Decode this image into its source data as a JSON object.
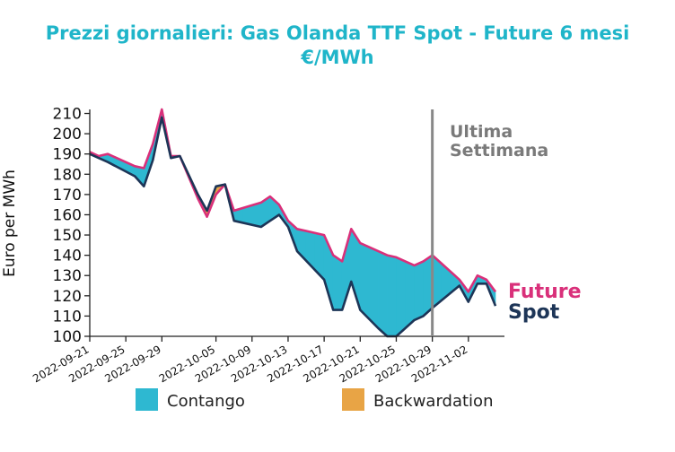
{
  "chart_data": {
    "type": "area",
    "title_line1": "Prezzi giornalieri: Gas Olanda TTF Spot - Future 6 mesi",
    "title_line2": "€/MWh",
    "ylabel": "Euro per MWh",
    "ylim": [
      100,
      212
    ],
    "yticks": [
      100,
      110,
      120,
      130,
      140,
      150,
      160,
      170,
      180,
      190,
      200,
      210
    ],
    "xlim": [
      "2022-09-21",
      "2022-11-06"
    ],
    "xticks": [
      "2022-09-21",
      "2022-09-25",
      "2022-09-29",
      "2022-10-05",
      "2022-10-09",
      "2022-10-13",
      "2022-10-17",
      "2022-10-21",
      "2022-10-25",
      "2022-10-29",
      "2022-11-02"
    ],
    "annotation": {
      "line1": "Ultima",
      "line2": "Settimana",
      "date": "2022-10-29"
    },
    "series": [
      {
        "name": "Future",
        "color": "#d9307a",
        "points": [
          [
            "2022-09-21",
            191
          ],
          [
            "2022-09-22",
            189
          ],
          [
            "2022-09-23",
            190
          ],
          [
            "2022-09-26",
            184
          ],
          [
            "2022-09-27",
            183
          ],
          [
            "2022-09-28",
            195
          ],
          [
            "2022-09-29",
            212
          ],
          [
            "2022-09-30",
            189
          ],
          [
            "2022-10-01",
            189
          ],
          [
            "2022-10-03",
            168
          ],
          [
            "2022-10-04",
            159
          ],
          [
            "2022-10-05",
            170
          ],
          [
            "2022-10-06",
            175
          ],
          [
            "2022-10-07",
            162
          ],
          [
            "2022-10-10",
            166
          ],
          [
            "2022-10-11",
            169
          ],
          [
            "2022-10-12",
            165
          ],
          [
            "2022-10-13",
            157
          ],
          [
            "2022-10-14",
            153
          ],
          [
            "2022-10-15",
            152
          ],
          [
            "2022-10-17",
            150
          ],
          [
            "2022-10-18",
            140
          ],
          [
            "2022-10-19",
            137
          ],
          [
            "2022-10-20",
            153
          ],
          [
            "2022-10-21",
            146
          ],
          [
            "2022-10-23",
            142
          ],
          [
            "2022-10-24",
            140
          ],
          [
            "2022-10-25",
            139
          ],
          [
            "2022-10-26",
            137
          ],
          [
            "2022-10-27",
            135
          ],
          [
            "2022-10-28",
            137
          ],
          [
            "2022-10-29",
            140
          ],
          [
            "2022-11-01",
            128
          ],
          [
            "2022-11-02",
            122
          ],
          [
            "2022-11-03",
            130
          ],
          [
            "2022-11-04",
            128
          ],
          [
            "2022-11-05",
            122
          ]
        ]
      },
      {
        "name": "Spot",
        "color": "#1d3557",
        "points": [
          [
            "2022-09-21",
            190
          ],
          [
            "2022-09-22",
            188
          ],
          [
            "2022-09-23",
            186
          ],
          [
            "2022-09-26",
            179
          ],
          [
            "2022-09-27",
            174
          ],
          [
            "2022-09-28",
            187
          ],
          [
            "2022-09-29",
            208
          ],
          [
            "2022-09-30",
            188
          ],
          [
            "2022-10-01",
            189
          ],
          [
            "2022-10-03",
            170
          ],
          [
            "2022-10-04",
            162
          ],
          [
            "2022-10-05",
            174
          ],
          [
            "2022-10-06",
            175
          ],
          [
            "2022-10-07",
            157
          ],
          [
            "2022-10-10",
            154
          ],
          [
            "2022-10-11",
            157
          ],
          [
            "2022-10-12",
            160
          ],
          [
            "2022-10-13",
            154
          ],
          [
            "2022-10-14",
            142
          ],
          [
            "2022-10-17",
            128
          ],
          [
            "2022-10-18",
            113
          ],
          [
            "2022-10-19",
            113
          ],
          [
            "2022-10-20",
            127
          ],
          [
            "2022-10-21",
            113
          ],
          [
            "2022-10-23",
            104
          ],
          [
            "2022-10-24",
            100
          ],
          [
            "2022-10-25",
            100
          ],
          [
            "2022-10-26",
            104
          ],
          [
            "2022-10-27",
            108
          ],
          [
            "2022-10-28",
            110
          ],
          [
            "2022-10-29",
            114
          ],
          [
            "2022-11-01",
            125
          ],
          [
            "2022-11-02",
            117
          ],
          [
            "2022-11-03",
            126
          ],
          [
            "2022-11-04",
            126
          ],
          [
            "2022-11-05",
            115
          ]
        ]
      }
    ],
    "fill_colors": {
      "Contango": "#2eb8d1",
      "Backwardation": "#e8a445"
    },
    "legend": [
      "Contango",
      "Backwardation"
    ],
    "legend_placement": "bottom"
  }
}
